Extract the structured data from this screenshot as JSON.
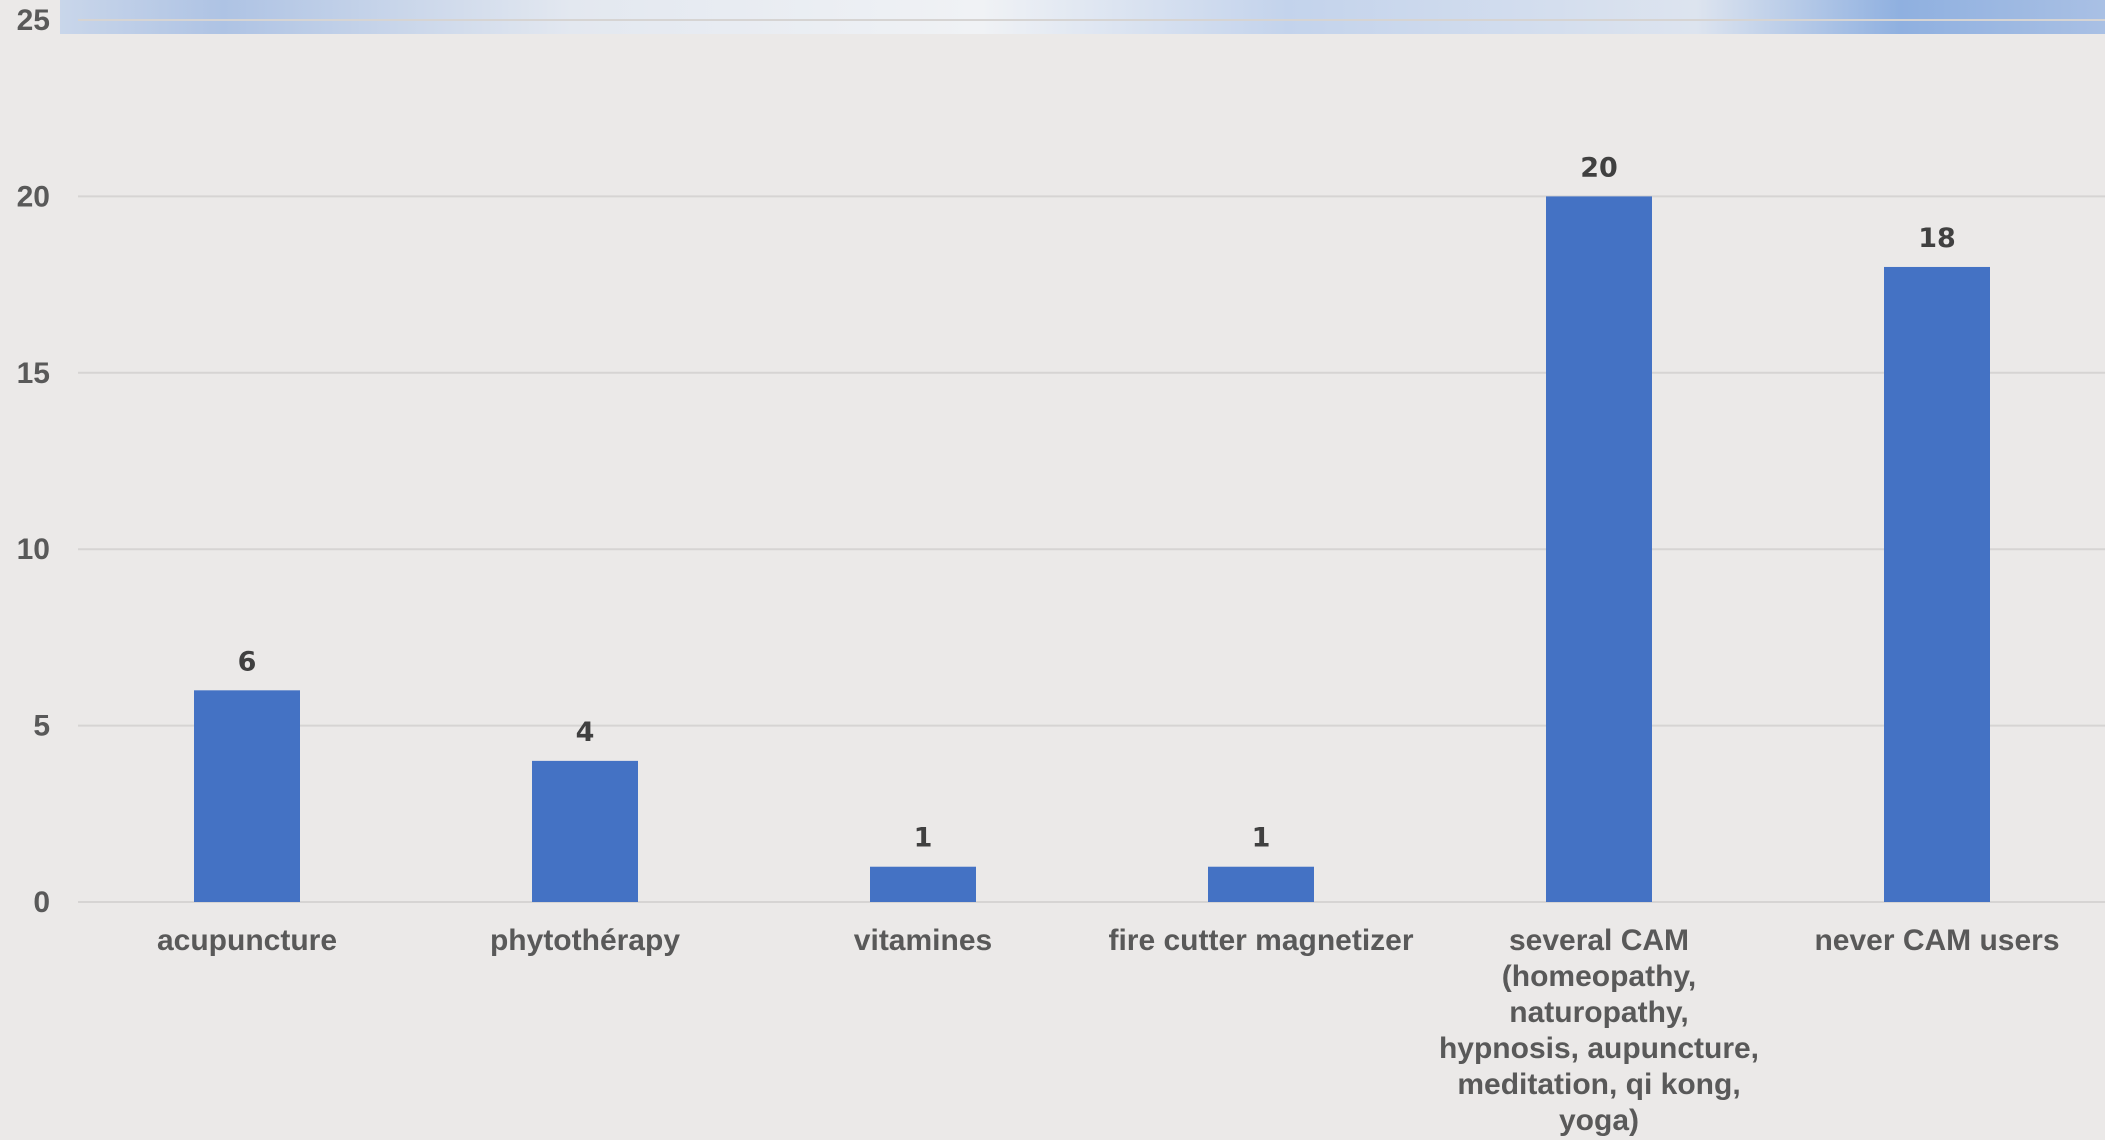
{
  "chart_data": {
    "type": "bar",
    "title": "",
    "xlabel": "",
    "ylabel": "",
    "categories": [
      "acupuncture",
      "phytothérapy",
      "vitamines",
      "fire cutter magnetizer",
      "several CAM (homeopathy, naturopathy, hypnosis, aupuncture, meditation, qi kong, yoga)",
      "never CAM users"
    ],
    "category_lines": [
      [
        "acupuncture"
      ],
      [
        "phytothérapy"
      ],
      [
        "vitamines"
      ],
      [
        "fire cutter magnetizer"
      ],
      [
        "several CAM",
        "(homeopathy,",
        "naturopathy,",
        "hypnosis, aupuncture,",
        "meditation, qi kong,",
        "yoga)"
      ],
      [
        "never CAM users"
      ]
    ],
    "values": [
      6,
      4,
      1,
      1,
      20,
      18
    ],
    "ylim": [
      0,
      25
    ],
    "yticks": [
      0,
      5,
      10,
      15,
      20,
      25
    ],
    "grid": true,
    "legend": "none",
    "colors": {
      "bar": "#4472c4",
      "grid": "#d6d4d3",
      "background": "#ebe9e8"
    }
  }
}
